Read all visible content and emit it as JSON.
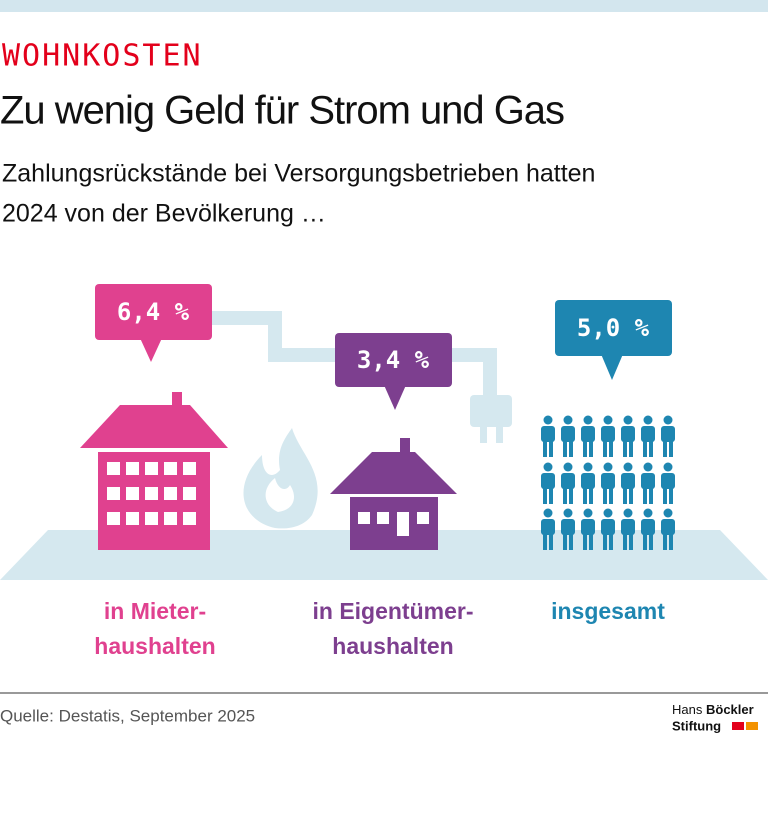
{
  "header": {
    "kicker": "WOHNKOSTEN",
    "title": "Zu wenig Geld für Strom und Gas",
    "subtitle": [
      "Zahlungsrückstände bei Versorgungsbetrieben hatten",
      "2024 von der Bevölkerung …"
    ]
  },
  "items": [
    {
      "value": "6,4 %",
      "label": [
        "in Mieter-",
        "haushalten"
      ]
    },
    {
      "value": "3,4 %",
      "label": [
        "in Eigentümer-",
        "haushalten"
      ]
    },
    {
      "value": "5,0 %",
      "label": [
        "insgesamt"
      ]
    }
  ],
  "footer": {
    "source": "Quelle: Destatis, September 2025",
    "logo": [
      "Hans",
      "Böckler",
      "Stiftung"
    ]
  }
}
